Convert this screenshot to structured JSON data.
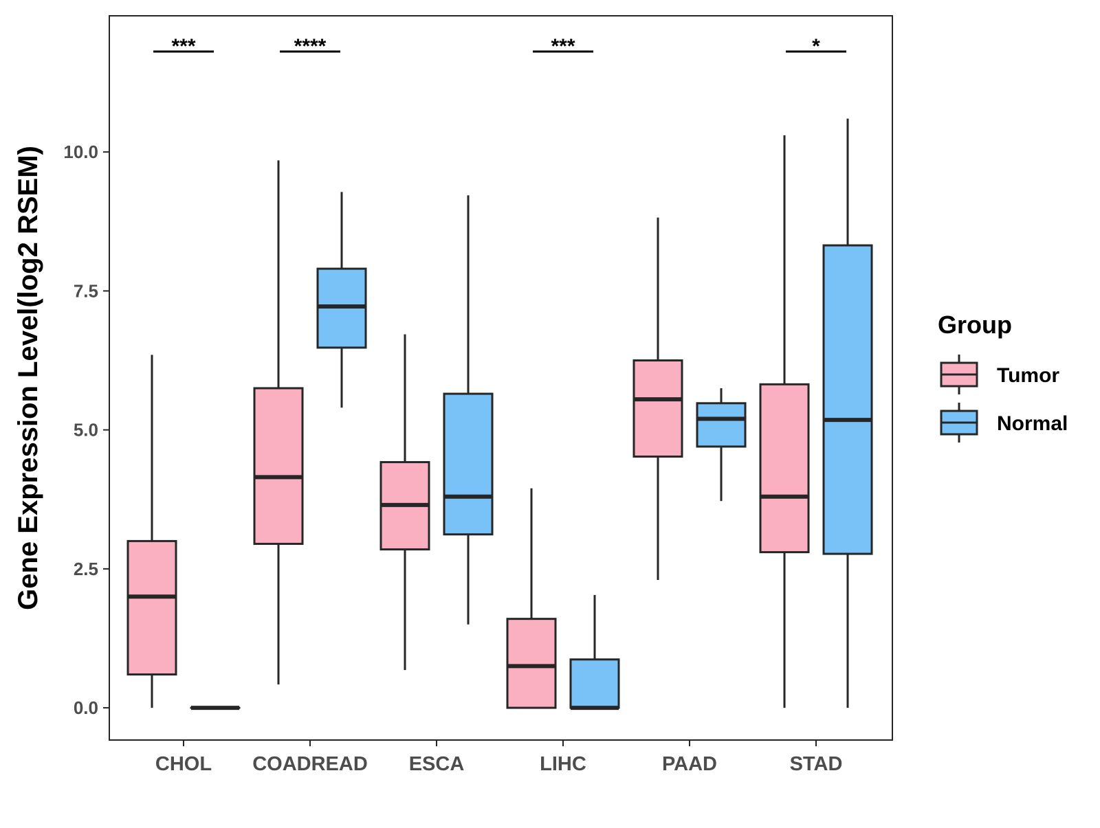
{
  "chart_data": {
    "type": "boxplot",
    "ylabel": "Gene Expression Level(log2 RSEM)",
    "xlabel": "",
    "ylim": [
      -0.58,
      12.45
    ],
    "yticks": [
      0.0,
      2.5,
      5.0,
      7.5,
      10.0
    ],
    "ytick_labels": [
      "0.0",
      "2.5",
      "5.0",
      "7.5",
      "10.0"
    ],
    "categories": [
      "CHOL",
      "COADREAD",
      "ESCA",
      "LIHC",
      "PAAD",
      "STAD"
    ],
    "legend": {
      "title": "Group",
      "position": "right",
      "entries": [
        {
          "name": "Tumor",
          "color": "#fbb0c2"
        },
        {
          "name": "Normal",
          "color": "#78c2f8"
        }
      ]
    },
    "series": [
      {
        "name": "Tumor",
        "color": "#fbb0c2",
        "boxes": [
          {
            "category": "CHOL",
            "min": 0.0,
            "q1": 0.6,
            "median": 2.0,
            "q3": 3.0,
            "max": 6.35
          },
          {
            "category": "COADREAD",
            "min": 0.42,
            "q1": 2.95,
            "median": 4.15,
            "q3": 5.75,
            "max": 9.85
          },
          {
            "category": "ESCA",
            "min": 0.68,
            "q1": 2.85,
            "median": 3.65,
            "q3": 4.42,
            "max": 6.72
          },
          {
            "category": "LIHC",
            "min": 0.0,
            "q1": 0.0,
            "median": 0.75,
            "q3": 1.6,
            "max": 3.95
          },
          {
            "category": "PAAD",
            "min": 2.3,
            "q1": 4.52,
            "median": 5.55,
            "q3": 6.25,
            "max": 8.82
          },
          {
            "category": "STAD",
            "min": 0.0,
            "q1": 2.8,
            "median": 3.8,
            "q3": 5.82,
            "max": 10.3
          }
        ]
      },
      {
        "name": "Normal",
        "color": "#78c2f8",
        "boxes": [
          {
            "category": "CHOL",
            "min": 0.0,
            "q1": 0.0,
            "median": 0.0,
            "q3": 0.0,
            "max": 0.0
          },
          {
            "category": "COADREAD",
            "min": 5.4,
            "q1": 6.48,
            "median": 7.22,
            "q3": 7.9,
            "max": 9.28
          },
          {
            "category": "ESCA",
            "min": 1.5,
            "q1": 3.12,
            "median": 3.8,
            "q3": 5.65,
            "max": 9.22
          },
          {
            "category": "LIHC",
            "min": 0.0,
            "q1": 0.0,
            "median": 0.0,
            "q3": 0.87,
            "max": 2.03
          },
          {
            "category": "PAAD",
            "min": 3.72,
            "q1": 4.7,
            "median": 5.2,
            "q3": 5.48,
            "max": 5.75
          },
          {
            "category": "STAD",
            "min": 0.0,
            "q1": 2.77,
            "median": 5.18,
            "q3": 8.32,
            "max": 10.6
          }
        ]
      }
    ],
    "significance": [
      {
        "category": "CHOL",
        "label": "***"
      },
      {
        "category": "COADREAD",
        "label": "****"
      },
      {
        "category": "LIHC",
        "label": "***"
      },
      {
        "category": "STAD",
        "label": "*"
      }
    ],
    "style": {
      "stroke_color": "#262626",
      "panel_border_color": "#262626",
      "background": "#ffffff"
    }
  }
}
